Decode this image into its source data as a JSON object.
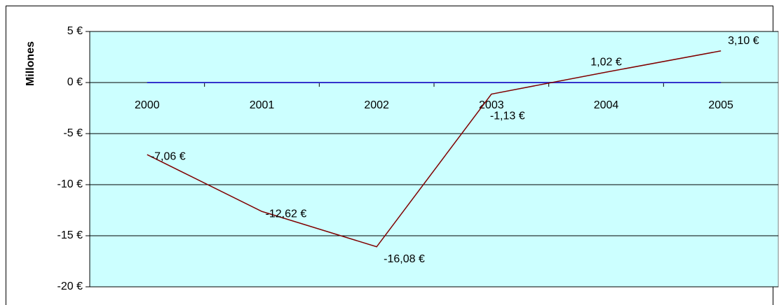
{
  "chart_data": {
    "type": "line",
    "y_label": "Millones",
    "categories": [
      "2000",
      "2001",
      "2002",
      "2003",
      "2004",
      "2005"
    ],
    "series": [
      {
        "color": "#800000",
        "values": [
          -7.06,
          -12.62,
          -16.08,
          -1.13,
          1.02,
          3.1
        ],
        "value_labels": [
          "-7,06 €",
          "-12,62 €",
          "-16,08 €",
          "-1,13 €",
          "1,02 €",
          "3,10 €"
        ]
      },
      {
        "color": "#3333cc",
        "values": [
          0,
          0,
          0,
          0,
          0,
          0
        ]
      }
    ],
    "ylim": [
      -20,
      5
    ],
    "yticks": [
      {
        "value": -20,
        "label": "-20 €"
      },
      {
        "value": -15,
        "label": "-15 €"
      },
      {
        "value": -10,
        "label": "-10 €"
      },
      {
        "value": -5,
        "label": "-5 €"
      },
      {
        "value": 0,
        "label": "0 €"
      },
      {
        "value": 5,
        "label": "5 €"
      }
    ],
    "grid": true,
    "plot_background": "#ccffff"
  }
}
